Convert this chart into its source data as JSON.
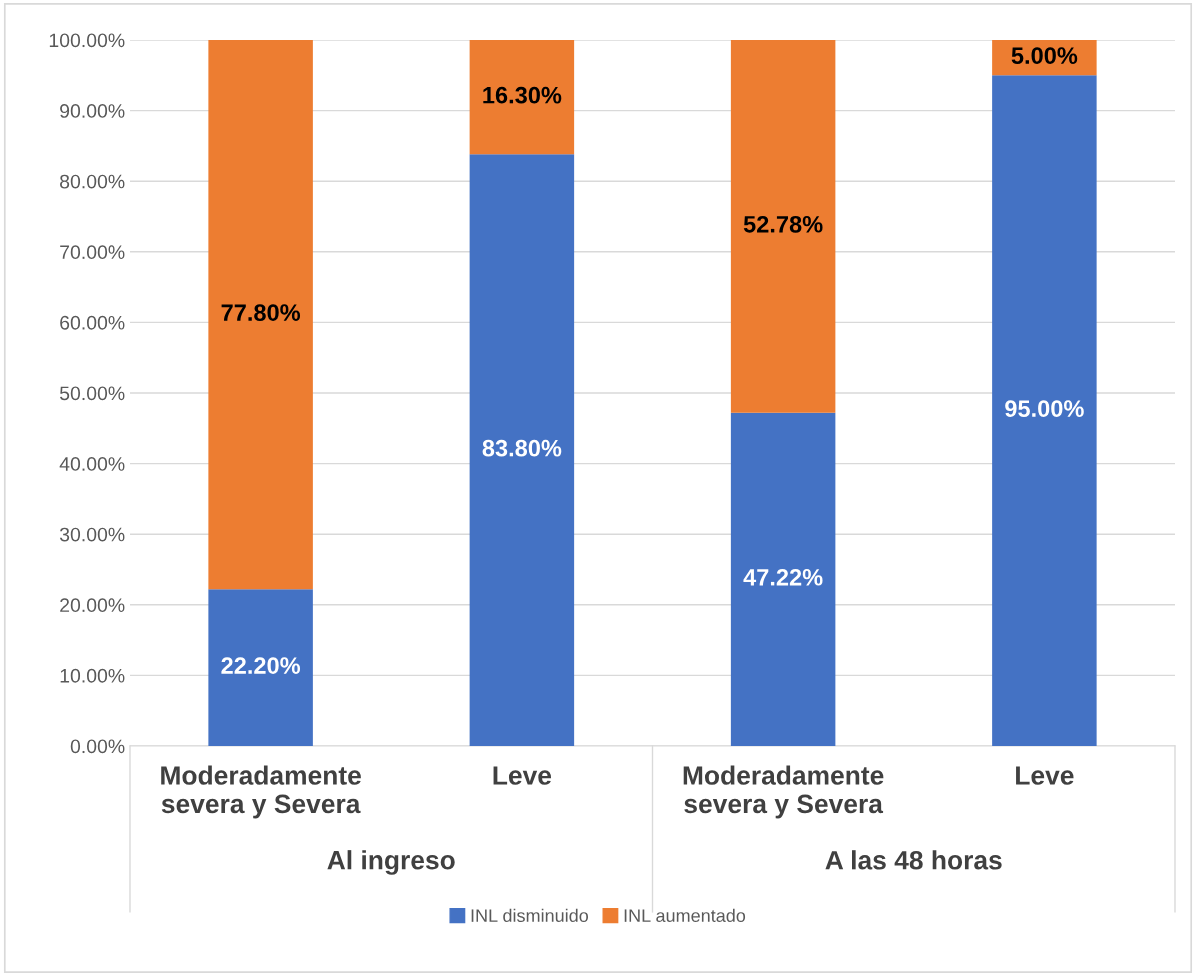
{
  "chart_data": {
    "type": "bar",
    "stacked": true,
    "categories": [
      "Moderadamente\nsevera y Severa",
      "Leve",
      "Moderadamente\nsevera y Severa",
      "Leve"
    ],
    "series": [
      {
        "name": "INL disminuido",
        "color": "#4472c4",
        "values": [
          22.2,
          83.8,
          47.22,
          95.0
        ],
        "value_labels": [
          "22.20%",
          "83.80%",
          "47.22%",
          "95.00%"
        ]
      },
      {
        "name": "INL aumentado",
        "color": "#ed7d31",
        "values": [
          77.8,
          16.3,
          52.78,
          5.0
        ],
        "value_labels": [
          "77.80%",
          "16.30%",
          "52.78%",
          "5.00%"
        ]
      }
    ],
    "annotations": [
      "Al ingreso",
      "A las 48 horas"
    ],
    "ylim": [
      0,
      100
    ],
    "yticks": [
      {
        "value": 0,
        "label": "0.00%"
      },
      {
        "value": 10,
        "label": "10.00%"
      },
      {
        "value": 20,
        "label": "20.00%"
      },
      {
        "value": 30,
        "label": "30.00%"
      },
      {
        "value": 40,
        "label": "40.00%"
      },
      {
        "value": 50,
        "label": "50.00%"
      },
      {
        "value": 60,
        "label": "60.00%"
      },
      {
        "value": 70,
        "label": "70.00%"
      },
      {
        "value": 80,
        "label": "80.00%"
      },
      {
        "value": 90,
        "label": "90.00%"
      },
      {
        "value": 100,
        "label": "100.00%"
      }
    ],
    "grid": "y",
    "legend": "bottom"
  }
}
